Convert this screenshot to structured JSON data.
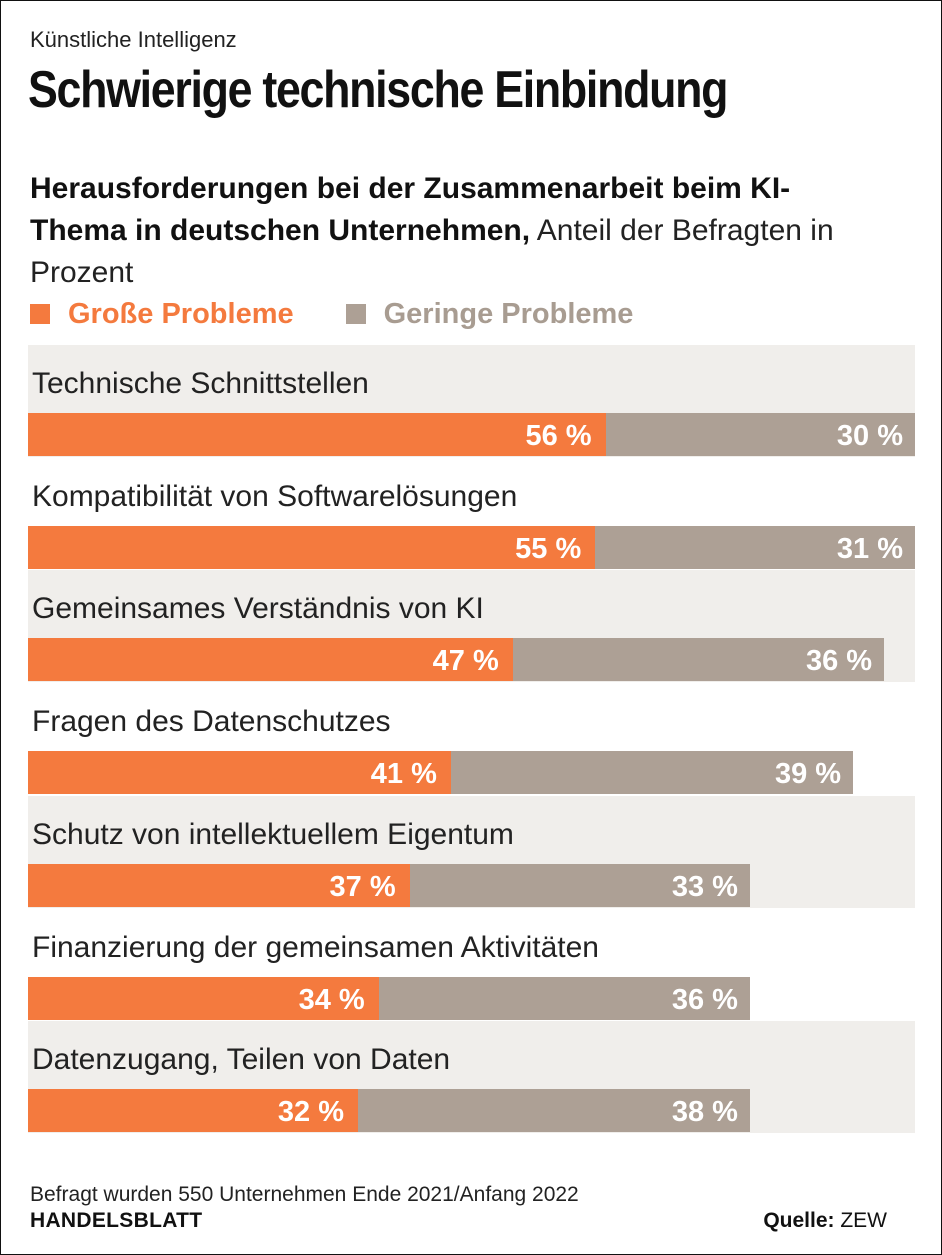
{
  "header": {
    "kicker": "Künstliche Intelligenz",
    "title": "Schwierige technische Einbindung",
    "subtitle_bold": "Herausforderungen bei der Zusammenarbeit beim KI-Thema in deutschen Unternehmen,",
    "subtitle_rest": " Anteil der Befragten in Prozent"
  },
  "legend": {
    "big_label": "Große Probleme",
    "small_label": "Geringe Probleme"
  },
  "colors": {
    "big": "#f47a3e",
    "small": "#ada095",
    "row_shade": "#f0eeeb"
  },
  "chart_data": {
    "type": "bar",
    "orientation": "horizontal",
    "stacked": true,
    "categories": [
      "Technische Schnittstellen",
      "Kompatibilität von Softwarelösungen",
      "Gemeinsames Verständnis von KI",
      "Fragen des Datenschutzes",
      "Schutz von intellektuellem Eigentum",
      "Finanzierung der gemeinsamen Aktivitäten",
      "Datenzugang, Teilen von Daten"
    ],
    "series": [
      {
        "name": "Große Probleme",
        "values": [
          56,
          55,
          47,
          41,
          37,
          34,
          32
        ],
        "labels": [
          "56 %",
          "55 %",
          "47 %",
          "41 %",
          "37 %",
          "34 %",
          "32 %"
        ]
      },
      {
        "name": "Geringe Probleme",
        "values": [
          30,
          31,
          36,
          39,
          33,
          36,
          38
        ],
        "labels": [
          "30 %",
          "31 %",
          "36 %",
          "39 %",
          "33 %",
          "36 %",
          "38 %"
        ]
      }
    ],
    "xlim": [
      0,
      86
    ]
  },
  "footer": {
    "note": "Befragt wurden 550 Unternehmen Ende 2021/Anfang 2022",
    "brand": "HANDELSBLATT",
    "source_label": "Quelle:",
    "source_value": "ZEW"
  }
}
